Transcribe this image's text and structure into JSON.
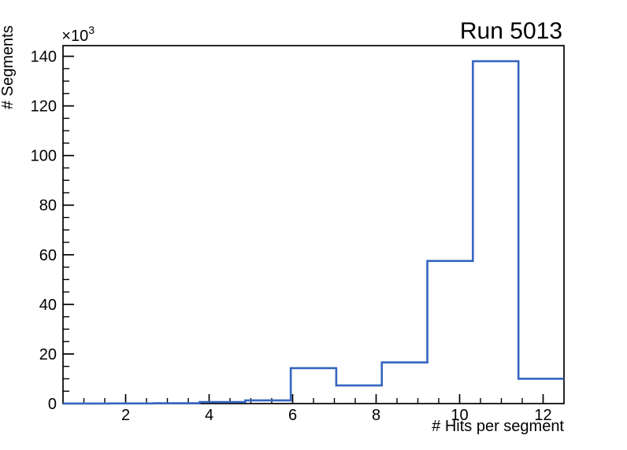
{
  "chart_data": {
    "type": "bar",
    "subtype": "step-histogram",
    "title": "Run 5013",
    "xlabel": "# Hits per segment",
    "ylabel": "# Segments",
    "y_axis_multiplier": {
      "base": "×10",
      "exponent": "3"
    },
    "xlim": [
      0.5,
      12.5
    ],
    "ylim": [
      0,
      144300
    ],
    "bin_edges": [
      0.5,
      1.591,
      2.682,
      3.773,
      4.864,
      5.955,
      7.045,
      8.136,
      9.227,
      10.318,
      11.409,
      12.5
    ],
    "counts": [
      20,
      60,
      150,
      600,
      1300,
      14300,
      7300,
      16600,
      57500,
      138000,
      10000
    ],
    "x_tick_values": [
      2,
      4,
      6,
      8,
      10,
      12
    ],
    "x_tick_labels": [
      "2",
      "4",
      "6",
      "8",
      "10",
      "12"
    ],
    "x_minor_tick_step": 0.5,
    "y_tick_values": [
      0,
      20000,
      40000,
      60000,
      80000,
      100000,
      120000,
      140000
    ],
    "y_tick_labels": [
      "0",
      "20",
      "40",
      "60",
      "80",
      "100",
      "120",
      "140"
    ],
    "y_minor_tick_step": 5000,
    "grid": false,
    "legend": false,
    "line_color": "#3565c0",
    "axis_color": "#000000",
    "background_color": "#ffffff"
  }
}
